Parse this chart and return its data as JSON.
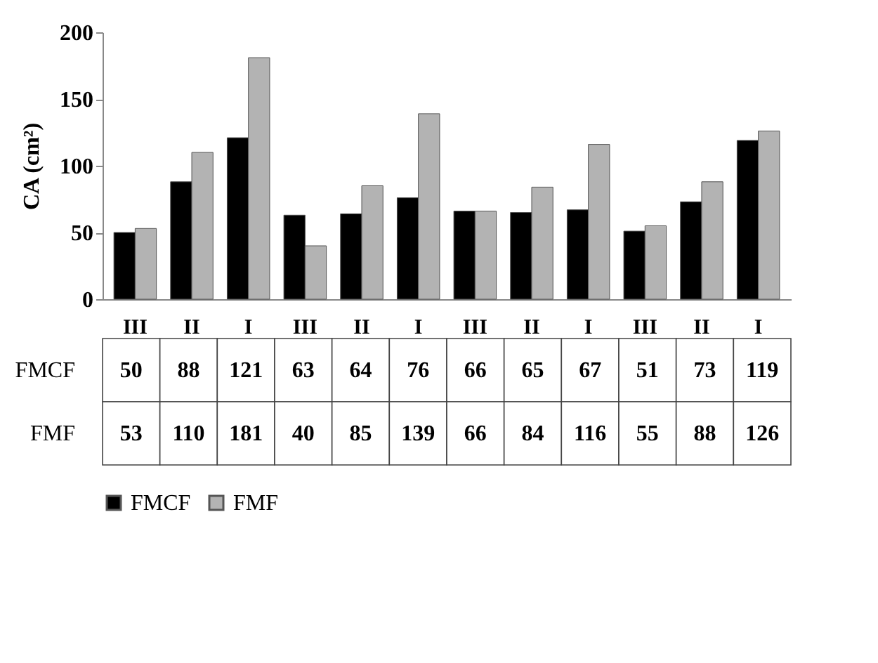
{
  "chart_data": {
    "type": "bar",
    "ylabel": "CA (cm²)",
    "categories": [
      "III",
      "II",
      "I",
      "III",
      "II",
      "I",
      "III",
      "II",
      "I",
      "III",
      "II",
      "I"
    ],
    "series": [
      {
        "name": "FMCF",
        "color": "#000000",
        "values": [
          50,
          88,
          121,
          63,
          64,
          76,
          66,
          65,
          67,
          51,
          73,
          119
        ]
      },
      {
        "name": "FMF",
        "color": "#b3b3b3",
        "values": [
          53,
          110,
          181,
          40,
          85,
          139,
          66,
          84,
          116,
          55,
          88,
          126
        ]
      }
    ],
    "ylim": [
      0,
      200
    ],
    "yticks": [
      0,
      50,
      100,
      150,
      200
    ],
    "data_labels": true,
    "legend": "bottom",
    "grid": false
  }
}
